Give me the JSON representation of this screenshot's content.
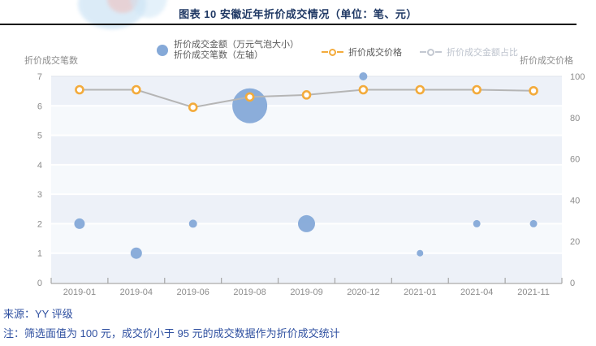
{
  "header": {
    "title": "图表 10 安徽近年折价成交情况（单位：笔、元）"
  },
  "legend": {
    "bubble_label_line1": "折价成交金额（万元气泡大小）",
    "bubble_label_line2": "折价成交笔数（左轴）",
    "price_label": "折价成交价格",
    "ratio_label": "折价成交金额占比"
  },
  "axes": {
    "left_title": "折价成交笔数",
    "right_title": "折价成交价格",
    "left_ticks": [
      7,
      6,
      5,
      4,
      3,
      2,
      1,
      0
    ],
    "right_ticks": [
      100,
      80,
      60,
      40,
      20,
      0
    ]
  },
  "footer": {
    "source": "来源：YY 评级",
    "note": "注：筛选面值为 100 元，成交价小于 95 元的成交数据作为折价成交统计"
  },
  "colors": {
    "title_text": "#1f3864",
    "bubble_fill": "#85a9d8",
    "price_ring": "#f3ab3c",
    "line_gray": "#b5b5b5",
    "axis_text": "#8c8c8c",
    "axis_line": "#a6a6a6",
    "band_light": "#f6f9fc",
    "band_dark": "#edf1f8",
    "grid_white": "#ffffff",
    "top_grid": "#e3e7ee",
    "disabled_legend": "#bdc3cd",
    "footer_text": "#2e4fa0"
  },
  "chart_data": {
    "type": "scatter",
    "subtype": "bubble-and-line-combo",
    "title": "图表 10 安徽近年折价成交情况（单位：笔、元）",
    "categories": [
      "2019-01",
      "2019-04",
      "2019-06",
      "2019-08",
      "2019-09",
      "2020-12",
      "2021-01",
      "2021-04",
      "2021-11"
    ],
    "series": [
      {
        "name": "折价成交笔数（左轴）/ 折价成交金额（万元气泡大小）",
        "type": "bubble",
        "axis": "left",
        "values": [
          2,
          1,
          2,
          6,
          2,
          7,
          1,
          2,
          2
        ],
        "bubble_radius_px": [
          6.5,
          7,
          5,
          21.5,
          10.5,
          5,
          4,
          4.5,
          4.5
        ]
      },
      {
        "name": "折价成交价格",
        "type": "line",
        "axis": "right",
        "values": [
          93.5,
          93.5,
          85,
          90,
          91,
          93.5,
          93.5,
          93.5,
          93
        ]
      },
      {
        "name": "折价成交金额占比",
        "type": "line",
        "axis": "right",
        "values": [],
        "disabled": true
      }
    ],
    "left_axis": {
      "title": "折价成交笔数",
      "range": [
        0,
        7
      ],
      "tick_step": 1
    },
    "right_axis": {
      "title": "折价成交价格",
      "range": [
        0,
        100
      ],
      "tick_step": 20
    },
    "legend_position": "top",
    "grid": "horizontal-bands"
  }
}
